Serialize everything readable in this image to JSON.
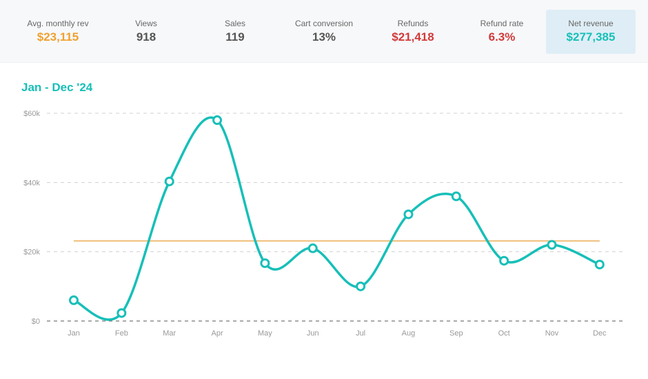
{
  "kpis": [
    {
      "label": "Avg. monthly rev",
      "value": "$23,115",
      "color": "#f0a030",
      "active": false
    },
    {
      "label": "Views",
      "value": "918",
      "color": "#555555",
      "active": false
    },
    {
      "label": "Sales",
      "value": "119",
      "color": "#555555",
      "active": false
    },
    {
      "label": "Cart conversion",
      "value": "13%",
      "color": "#555555",
      "active": false
    },
    {
      "label": "Refunds",
      "value": "$21,418",
      "color": "#d13a3a",
      "active": false
    },
    {
      "label": "Refund rate",
      "value": "6.3%",
      "color": "#d13a3a",
      "active": false
    },
    {
      "label": "Net revenue",
      "value": "$277,385",
      "color": "#17bfb8",
      "active": true
    }
  ],
  "chart_data": {
    "type": "line",
    "title": "Jan - Dec '24",
    "categories": [
      "Jan",
      "Feb",
      "Mar",
      "Apr",
      "May",
      "Jun",
      "Jul",
      "Aug",
      "Sep",
      "Oct",
      "Nov",
      "Dec"
    ],
    "series": [
      {
        "values": [
          6000,
          2300,
          40300,
          58000,
          16700,
          21000,
          10000,
          30800,
          36000,
          17400,
          22000,
          16300
        ],
        "color": "#17bfb8"
      }
    ],
    "reference_line": {
      "value": 23115,
      "color": "#f0c080"
    },
    "ylim": [
      0,
      60000
    ],
    "yticks": [
      0,
      20000,
      40000,
      60000
    ],
    "ytick_labels": [
      "$0",
      "$20k",
      "$40k",
      "$60k"
    ],
    "grid": true,
    "xlabel": "",
    "ylabel": ""
  }
}
